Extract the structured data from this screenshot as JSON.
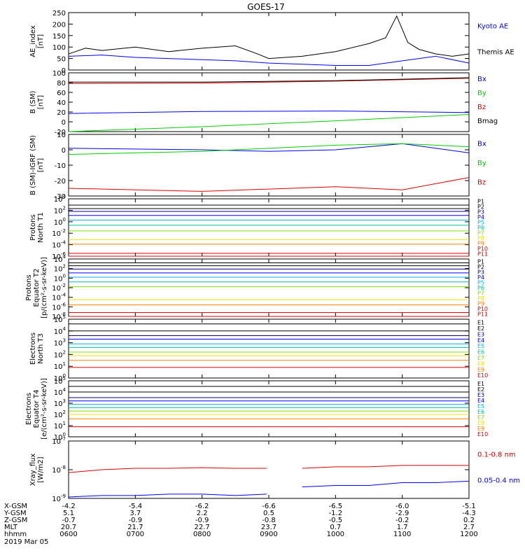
{
  "title": "GOES-17",
  "colors": {
    "black": "#000000",
    "blue": "#0000ff",
    "green": "#00cc00",
    "red": "#dd0000",
    "navy": "#000080",
    "cyan": "#00b0e0",
    "teal": "#00c0a0",
    "lime": "#80e000",
    "yellow": "#f0e000",
    "orange": "#ff8000",
    "purple": "#a000c0"
  },
  "xaxis": {
    "ticks": [
      "0600",
      "0700",
      "0800",
      "0900",
      "1000",
      "1100",
      "1200"
    ],
    "range_hhmm": [
      "0600",
      "1200"
    ]
  },
  "footer": {
    "rows": [
      {
        "label": "X-GSM",
        "values": [
          "-4.2",
          "-5.4",
          "-6.2",
          "-6.6",
          "-6.5",
          "-6.0",
          "-5.1"
        ]
      },
      {
        "label": "Y-GSM",
        "values": [
          "5.1",
          "3.7",
          "2.2",
          "0.5",
          "-1.2",
          "-2.9",
          "-4.3"
        ]
      },
      {
        "label": "Z-GSM",
        "values": [
          "-0.7",
          "-0.9",
          "-0.9",
          "-0.8",
          "-0.5",
          "-0.2",
          "0.2"
        ]
      },
      {
        "label": "MLT",
        "values": [
          "20.7",
          "21.7",
          "22.7",
          "23.7",
          "0.7",
          "1.7",
          "2.7"
        ]
      },
      {
        "label": "hhmm",
        "values": [
          "0600",
          "0700",
          "0800",
          "0900",
          "1000",
          "1100",
          "1200"
        ]
      }
    ],
    "date": "2019 Mar 05"
  },
  "chart_data": [
    {
      "type": "line",
      "panel": "ae",
      "ylabel": "AE_index\n[nT]",
      "ylim": [
        0,
        250
      ],
      "yticks": [
        "0",
        "50",
        "100",
        "150",
        "200",
        "250"
      ],
      "series": [
        {
          "name": "Kyoto AE",
          "color": "blue",
          "x": [
            "0600",
            "0630",
            "0700",
            "0730",
            "0800",
            "0830",
            "0900",
            "0930",
            "1000",
            "1030",
            "1100",
            "1130",
            "1200"
          ],
          "values": [
            60,
            65,
            55,
            50,
            45,
            40,
            30,
            25,
            20,
            20,
            40,
            60,
            30
          ]
        },
        {
          "name": "Themis AE",
          "color": "black",
          "x": [
            "0600",
            "0615",
            "0630",
            "0700",
            "0730",
            "0800",
            "0830",
            "0850",
            "0900",
            "0930",
            "1000",
            "1030",
            "1045",
            "1055",
            "1105",
            "1115",
            "1130",
            "1145",
            "1200"
          ],
          "values": [
            70,
            95,
            85,
            100,
            80,
            95,
            105,
            70,
            50,
            60,
            80,
            115,
            140,
            235,
            120,
            90,
            70,
            60,
            70
          ]
        }
      ]
    },
    {
      "type": "line",
      "panel": "b_sm",
      "ylabel": "B (SM)\n[nT]",
      "ylim": [
        -20,
        100
      ],
      "yticks": [
        "-20",
        "0",
        "20",
        "40",
        "60",
        "80",
        "100"
      ],
      "series": [
        {
          "name": "Bx",
          "color": "blue",
          "x": [
            "0600",
            "0800",
            "1000",
            "1200"
          ],
          "values": [
            17,
            21,
            22,
            19
          ]
        },
        {
          "name": "By",
          "color": "green",
          "x": [
            "0600",
            "0800",
            "1000",
            "1200"
          ],
          "values": [
            -20,
            -10,
            2,
            15
          ]
        },
        {
          "name": "Bz",
          "color": "red",
          "x": [
            "0600",
            "0800",
            "1000",
            "1200"
          ],
          "values": [
            78,
            79,
            83,
            89
          ]
        },
        {
          "name": "Bmag",
          "color": "black",
          "x": [
            "0600",
            "0800",
            "1000",
            "1200"
          ],
          "values": [
            81,
            81,
            84,
            90
          ]
        }
      ]
    },
    {
      "type": "line",
      "panel": "b_igrf",
      "ylabel": "B (SM)-IGRF (SM)\n[nT]",
      "ylim": [
        -30,
        10
      ],
      "yticks": [
        "-30",
        "-20",
        "-10",
        "0",
        "10"
      ],
      "series": [
        {
          "name": "Bx",
          "color": "blue",
          "x": [
            "0600",
            "0800",
            "0900",
            "1000",
            "1100",
            "1130",
            "1200"
          ],
          "values": [
            1,
            0,
            -1,
            0,
            4,
            1,
            -2
          ]
        },
        {
          "name": "By",
          "color": "green",
          "x": [
            "0600",
            "0800",
            "1000",
            "1100",
            "1200"
          ],
          "values": [
            -3,
            -1,
            3,
            4,
            2
          ]
        },
        {
          "name": "Bz",
          "color": "red",
          "x": [
            "0600",
            "0800",
            "1000",
            "1100",
            "1200"
          ],
          "values": [
            -25,
            -27,
            -24,
            -26,
            -18
          ]
        }
      ]
    },
    {
      "type": "line",
      "panel": "protons_north",
      "ylabel": "Protons\nNorth T1",
      "log_scale": true,
      "ylim_exp": [
        -6,
        4
      ],
      "yticks": [
        "10-6",
        "10-4",
        "10-2",
        "100",
        "102",
        "104"
      ],
      "series": [
        {
          "name": "P1",
          "color": "black",
          "level_exp": 2.9
        },
        {
          "name": "P2",
          "color": "black",
          "level_exp": 2.3
        },
        {
          "name": "P3",
          "color": "navy",
          "level_exp": 1.8
        },
        {
          "name": "P4",
          "color": "blue",
          "level_exp": 1.1
        },
        {
          "name": "P5",
          "color": "cyan",
          "level_exp": 0.3
        },
        {
          "name": "P6",
          "color": "teal",
          "level_exp": -0.6
        },
        {
          "name": "P7",
          "color": "lime",
          "level_exp": -1.6
        },
        {
          "name": "P8",
          "color": "yellow",
          "level_exp": -3.1
        },
        {
          "name": "P9",
          "color": "orange",
          "level_exp": -3.9
        },
        {
          "name": "P10",
          "color": "red",
          "level_exp": -5.5
        },
        {
          "name": "P11",
          "color": "red",
          "level_exp": -6.0
        }
      ]
    },
    {
      "type": "line",
      "panel": "protons_equator",
      "ylabel": "Protons\nEquator T2\n[p/(cm²-s-sr-keV)]",
      "log_scale": true,
      "ylim_exp": [
        -8,
        4
      ],
      "yticks": [
        "10-8",
        "10-6",
        "10-4",
        "10-2",
        "100",
        "102",
        "104"
      ],
      "series": [
        {
          "name": "P1",
          "color": "black",
          "level_exp": 3.2
        },
        {
          "name": "P2",
          "color": "black",
          "level_exp": 2.6
        },
        {
          "name": "P3",
          "color": "navy",
          "level_exp": 1.9
        },
        {
          "name": "P4",
          "color": "blue",
          "level_exp": 1.1
        },
        {
          "name": "P5",
          "color": "cyan",
          "level_exp": 0.2
        },
        {
          "name": "P6",
          "color": "teal",
          "level_exp": -0.8
        },
        {
          "name": "P7",
          "color": "lime",
          "level_exp": -1.8
        },
        {
          "name": "P8",
          "color": "yellow",
          "level_exp": -4.5
        },
        {
          "name": "P9",
          "color": "orange",
          "level_exp": -5.6
        },
        {
          "name": "P10",
          "color": "red",
          "level_exp": -7.2
        },
        {
          "name": "P11",
          "color": "red",
          "level_exp": -8.0
        }
      ]
    },
    {
      "type": "line",
      "panel": "electrons_north",
      "ylabel": "Electrons\nNorth T3",
      "log_scale": true,
      "ylim_exp": [
        0,
        5
      ],
      "yticks": [
        "100",
        "101",
        "102",
        "103",
        "104",
        "105"
      ],
      "series": [
        {
          "name": "E1",
          "color": "black",
          "level_exp": 4.6
        },
        {
          "name": "E2",
          "color": "black",
          "level_exp": 4.0
        },
        {
          "name": "E3",
          "color": "navy",
          "level_exp": 3.6
        },
        {
          "name": "E4",
          "color": "blue",
          "level_exp": 3.3
        },
        {
          "name": "E5",
          "color": "cyan",
          "level_exp": 2.9
        },
        {
          "name": "E6",
          "color": "teal",
          "level_exp": 2.6
        },
        {
          "name": "E7",
          "color": "lime",
          "level_exp": 2.2
        },
        {
          "name": "E8",
          "color": "yellow",
          "level_exp": 1.9
        },
        {
          "name": "E9",
          "color": "orange",
          "level_exp": 1.5
        },
        {
          "name": "E10",
          "color": "red",
          "level_exp": 0.9
        }
      ]
    },
    {
      "type": "line",
      "panel": "electrons_equator",
      "ylabel": "Electrons\nEquator T4\n[e/(cm²-s-sr-keV)]",
      "log_scale": true,
      "ylim_exp": [
        0,
        5
      ],
      "yticks": [
        "100",
        "101",
        "102",
        "103",
        "104",
        "105"
      ],
      "series": [
        {
          "name": "E1",
          "color": "black",
          "level_exp": 4.5
        },
        {
          "name": "E2",
          "color": "black",
          "level_exp": 4.0
        },
        {
          "name": "E3",
          "color": "navy",
          "level_exp": 3.5
        },
        {
          "name": "E4",
          "color": "blue",
          "level_exp": 3.2
        },
        {
          "name": "E5",
          "color": "cyan",
          "level_exp": 2.9
        },
        {
          "name": "E6",
          "color": "teal",
          "level_exp": 2.6
        },
        {
          "name": "E7",
          "color": "lime",
          "level_exp": 2.3
        },
        {
          "name": "E8",
          "color": "yellow",
          "level_exp": 2.0
        },
        {
          "name": "E9",
          "color": "orange",
          "level_exp": 1.6
        },
        {
          "name": "E10",
          "color": "red",
          "level_exp": 0.9
        }
      ]
    },
    {
      "type": "line",
      "panel": "xray",
      "ylabel": "Xray_flux\n[W/m2]",
      "log_scale": true,
      "ylim_exp": [
        -9,
        -7
      ],
      "yticks": [
        "10-9",
        "10-8",
        "10-7"
      ],
      "gap": [
        "0900",
        "0930"
      ],
      "series": [
        {
          "name": "0.1-0.8 nm",
          "color": "red",
          "x": [
            "0600",
            "0630",
            "0700",
            "0730",
            "0800",
            "0830",
            "0858",
            "0930",
            "1000",
            "1030",
            "1100",
            "1130",
            "1200"
          ],
          "values_exp": [
            -8.1,
            -8.0,
            -7.95,
            -7.95,
            -7.93,
            -7.95,
            -7.95,
            -7.95,
            -7.9,
            -7.9,
            -7.85,
            -7.85,
            -7.85
          ]
        },
        {
          "name": "0.05-0.4 nm",
          "color": "blue",
          "x": [
            "0600",
            "0630",
            "0700",
            "0730",
            "0800",
            "0830",
            "0858",
            "0930",
            "1000",
            "1030",
            "1100",
            "1130",
            "1200"
          ],
          "values_exp": [
            -8.95,
            -8.9,
            -8.9,
            -8.85,
            -8.85,
            -8.9,
            -8.85,
            -8.6,
            -8.55,
            -8.55,
            -8.45,
            -8.45,
            -8.4
          ]
        }
      ]
    }
  ]
}
